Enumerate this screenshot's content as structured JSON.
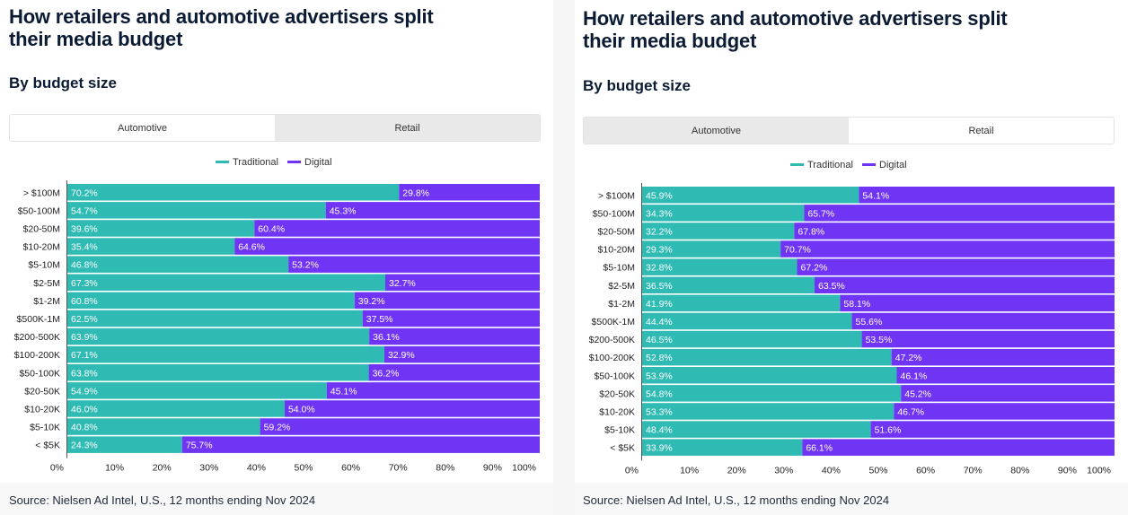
{
  "colors": {
    "traditional": "#2fbbb3",
    "digital": "#7034f4",
    "text": "#0b1b33",
    "axis": "#222222"
  },
  "panels": [
    {
      "title_line1": "How retailers and automotive advertisers split",
      "title_line2": "their media budget",
      "subtitle": "By budget size",
      "tabs": [
        "Automotive",
        "Retail"
      ],
      "active_tab": 0,
      "source": "Source: Nielsen Ad Intel, U.S., 12 months ending Nov 2024"
    },
    {
      "title_line1": "How retailers and automotive advertisers split",
      "title_line2": "their media budget",
      "subtitle": "By budget size",
      "tabs": [
        "Automotive",
        "Retail"
      ],
      "active_tab": 1,
      "source": "Source: Nielsen Ad Intel, U.S., 12 months ending Nov 2024"
    }
  ],
  "chart_data": [
    {
      "type": "bar",
      "stacked": true,
      "orientation": "horizontal",
      "title": "Automotive",
      "legend_position": "top-center",
      "categories": [
        "> $100M",
        "$50-100M",
        "$20-50M",
        "$10-20M",
        "$5-10M",
        "$2-5M",
        "$1-2M",
        "$500K-1M",
        "$200-500K",
        "$100-200K",
        "$50-100K",
        "$20-50K",
        "$10-20K",
        "$5-10K",
        "< $5K"
      ],
      "series": [
        {
          "name": "Traditional",
          "values": [
            70.2,
            54.7,
            39.6,
            35.4,
            46.8,
            67.3,
            60.8,
            62.5,
            63.9,
            67.1,
            63.8,
            54.9,
            46.0,
            40.8,
            24.3
          ],
          "labels": [
            "70.2%",
            "54.7%",
            "39.6%",
            "35.4%",
            "46.8%",
            "67.3%",
            "60.8%",
            "62.5%",
            "63.9%",
            "67.1%",
            "63.8%",
            "54.9%",
            "46.0%",
            "40.8%",
            "24.3%"
          ]
        },
        {
          "name": "Digital",
          "values": [
            29.8,
            45.3,
            60.4,
            64.6,
            53.2,
            32.7,
            39.2,
            37.5,
            36.1,
            32.9,
            36.2,
            45.1,
            54.0,
            59.2,
            75.7
          ],
          "labels": [
            "29.8%",
            "45.3%",
            "60.4%",
            "64.6%",
            "53.2%",
            "32.7%",
            "39.2%",
            "37.5%",
            "36.1%",
            "32.9%",
            "36.2%",
            "45.1%",
            "54.0%",
            "59.2%",
            "75.7%"
          ]
        }
      ],
      "xticks": [
        "0%",
        "10%",
        "20%",
        "30%",
        "40%",
        "50%",
        "60%",
        "70%",
        "80%",
        "90%",
        "100%"
      ],
      "xlim": [
        0,
        100
      ]
    },
    {
      "type": "bar",
      "stacked": true,
      "orientation": "horizontal",
      "title": "Retail",
      "legend_position": "top-center",
      "categories": [
        "> $100M",
        "$50-100M",
        "$20-50M",
        "$10-20M",
        "$5-10M",
        "$2-5M",
        "$1-2M",
        "$500K-1M",
        "$200-500K",
        "$100-200K",
        "$50-100K",
        "$20-50K",
        "$10-20K",
        "$5-10K",
        "< $5K"
      ],
      "series": [
        {
          "name": "Traditional",
          "values": [
            45.9,
            34.3,
            32.2,
            29.3,
            32.8,
            36.5,
            41.9,
            44.4,
            46.5,
            52.8,
            53.9,
            54.8,
            53.3,
            48.4,
            33.9
          ],
          "labels": [
            "45.9%",
            "34.3%",
            "32.2%",
            "29.3%",
            "32.8%",
            "36.5%",
            "41.9%",
            "44.4%",
            "46.5%",
            "52.8%",
            "53.9%",
            "54.8%",
            "53.3%",
            "48.4%",
            "33.9%"
          ]
        },
        {
          "name": "Digital",
          "values": [
            54.1,
            65.7,
            67.8,
            70.7,
            67.2,
            63.5,
            58.1,
            55.6,
            53.5,
            47.2,
            46.1,
            45.2,
            46.7,
            51.6,
            66.1
          ],
          "labels": [
            "54.1%",
            "65.7%",
            "67.8%",
            "70.7%",
            "67.2%",
            "63.5%",
            "58.1%",
            "55.6%",
            "53.5%",
            "47.2%",
            "46.1%",
            "45.2%",
            "46.7%",
            "51.6%",
            "66.1%"
          ]
        }
      ],
      "xticks": [
        "0%",
        "10%",
        "20%",
        "30%",
        "40%",
        "50%",
        "60%",
        "70%",
        "80%",
        "90%",
        "100%"
      ],
      "xlim": [
        0,
        100
      ]
    }
  ]
}
